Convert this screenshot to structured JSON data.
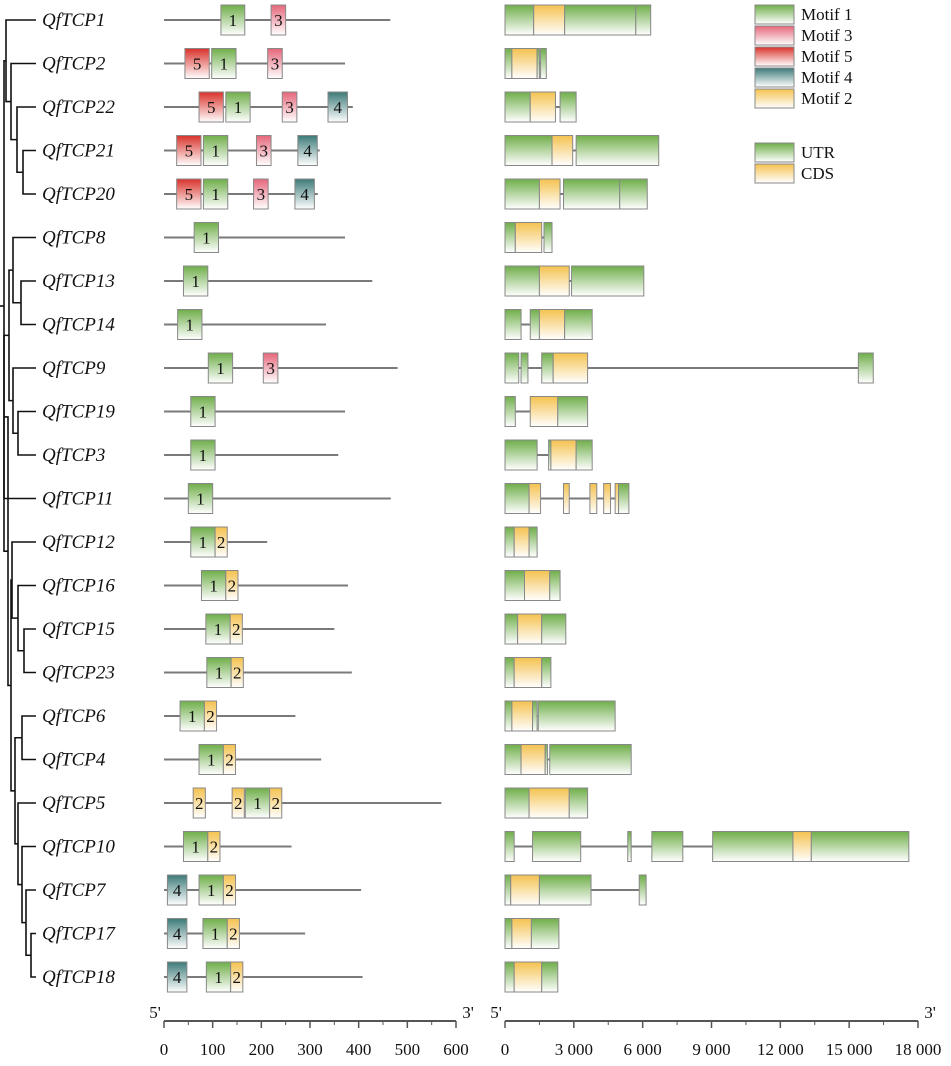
{
  "colors": {
    "motif1": [
      "#6fae4a",
      "#ffffff"
    ],
    "motif3": [
      "#e5667a",
      "#ffffff"
    ],
    "motif5": [
      "#d9322b",
      "#ffffff"
    ],
    "motif4": [
      "#3c7a78",
      "#ffffff"
    ],
    "motif2": [
      "#f4c24f",
      "#ffffff"
    ],
    "utr": [
      "#6fae4a",
      "#ffffff"
    ],
    "cds": [
      "#f4c24f",
      "#ffffff"
    ],
    "line": "#7a7a7a",
    "tree": "#111111"
  },
  "legend": [
    {
      "key": "motif1",
      "label": "Motif 1"
    },
    {
      "key": "motif3",
      "label": "Motif 3"
    },
    {
      "key": "motif5",
      "label": "Motif 5"
    },
    {
      "key": "motif4",
      "label": "Motif 4"
    },
    {
      "key": "motif2",
      "label": "Motif 2"
    },
    {
      "key": "utr",
      "label": "UTR"
    },
    {
      "key": "cds",
      "label": "CDS"
    }
  ],
  "motif_axis": {
    "start_label": "5'",
    "end_label": "3'",
    "ticks": [
      0,
      100,
      200,
      300,
      400,
      500,
      600
    ],
    "range": [
      0,
      600
    ]
  },
  "gene_axis": {
    "start_label": "5'",
    "end_label": "3'",
    "ticks": [
      "0",
      "3 000",
      "6 000",
      "9 000",
      "12 000",
      "15 000",
      "18 000"
    ],
    "range": [
      0,
      18000
    ]
  },
  "genes": [
    {
      "name": "QfTCP1",
      "length": 465,
      "motifs": [
        [
          117,
          166,
          1
        ],
        [
          220,
          250,
          3
        ]
      ],
      "structure": [
        [
          "u",
          0,
          1250
        ],
        [
          "c",
          1250,
          2600
        ],
        [
          "u",
          2600,
          5700
        ],
        [
          "u",
          5700,
          6350
        ]
      ]
    },
    {
      "name": "QfTCP2",
      "length": 372,
      "motifs": [
        [
          43,
          93,
          5
        ],
        [
          98,
          148,
          1
        ],
        [
          213,
          243,
          3
        ]
      ],
      "structure": [
        [
          "u",
          0,
          300
        ],
        [
          "c",
          300,
          1400
        ],
        [
          "u",
          1400,
          1500
        ],
        [
          "u",
          1550,
          1800
        ]
      ]
    },
    {
      "name": "QfTCP22",
      "length": 388,
      "motifs": [
        [
          72,
          122,
          5
        ],
        [
          127,
          177,
          1
        ],
        [
          243,
          273,
          3
        ],
        [
          337,
          377,
          4
        ]
      ],
      "structure": [
        [
          "u",
          0,
          1100
        ],
        [
          "c",
          1100,
          2200
        ],
        [
          "u",
          2400,
          3100
        ]
      ]
    },
    {
      "name": "QfTCP21",
      "length": 320,
      "motifs": [
        [
          26,
          76,
          5
        ],
        [
          81,
          131,
          1
        ],
        [
          190,
          220,
          3
        ],
        [
          275,
          315,
          4
        ]
      ],
      "structure": [
        [
          "u",
          0,
          2050
        ],
        [
          "c",
          2050,
          2950
        ],
        [
          "u",
          3100,
          6700
        ]
      ]
    },
    {
      "name": "QfTCP20",
      "length": 316,
      "motifs": [
        [
          26,
          76,
          5
        ],
        [
          81,
          131,
          1
        ],
        [
          184,
          214,
          3
        ],
        [
          269,
          309,
          4
        ]
      ],
      "structure": [
        [
          "u",
          0,
          1500
        ],
        [
          "c",
          1500,
          2400
        ],
        [
          "u",
          2550,
          5000
        ],
        [
          "u",
          5000,
          6200
        ]
      ]
    },
    {
      "name": "QfTCP8",
      "length": 372,
      "motifs": [
        [
          62,
          112,
          1
        ]
      ],
      "structure": [
        [
          "u",
          0,
          450
        ],
        [
          "c",
          450,
          1600
        ],
        [
          "u",
          1700,
          2050
        ]
      ]
    },
    {
      "name": "QfTCP13",
      "length": 428,
      "motifs": [
        [
          40,
          90,
          1
        ]
      ],
      "structure": [
        [
          "u",
          0,
          1500
        ],
        [
          "c",
          1500,
          2800
        ],
        [
          "u",
          2900,
          6050
        ]
      ]
    },
    {
      "name": "QfTCP14",
      "length": 333,
      "motifs": [
        [
          28,
          78,
          1
        ]
      ],
      "structure": [
        [
          "u",
          0,
          700
        ],
        [
          "u",
          1100,
          1500
        ],
        [
          "c",
          1500,
          2600
        ],
        [
          "u",
          2600,
          3800
        ]
      ]
    },
    {
      "name": "QfTCP9",
      "length": 480,
      "motifs": [
        [
          91,
          141,
          1
        ],
        [
          204,
          234,
          3
        ]
      ],
      "structure": [
        [
          "u",
          0,
          600
        ],
        [
          "u",
          700,
          1000
        ],
        [
          "u",
          1600,
          2100
        ],
        [
          "c",
          2100,
          3600
        ],
        [
          "u",
          15400,
          16050
        ]
      ]
    },
    {
      "name": "QfTCP19",
      "length": 372,
      "motifs": [
        [
          55,
          105,
          1
        ]
      ],
      "structure": [
        [
          "u",
          0,
          450
        ],
        [
          "c",
          1100,
          2300
        ],
        [
          "u",
          2300,
          3600
        ]
      ]
    },
    {
      "name": "QfTCP3",
      "length": 358,
      "motifs": [
        [
          55,
          105,
          1
        ]
      ],
      "structure": [
        [
          "u",
          0,
          1400
        ],
        [
          "u",
          1900,
          2000
        ],
        [
          "c",
          2000,
          3100
        ],
        [
          "u",
          3100,
          3800
        ]
      ]
    },
    {
      "name": "QfTCP11",
      "length": 466,
      "motifs": [
        [
          50,
          100,
          1
        ]
      ],
      "structure": [
        [
          "u",
          0,
          1050
        ],
        [
          "c",
          1050,
          1550
        ],
        [
          "c",
          2550,
          2800
        ],
        [
          "c",
          3700,
          4000
        ],
        [
          "c",
          4300,
          4600
        ],
        [
          "c",
          4800,
          4950
        ],
        [
          "u",
          4950,
          5400
        ]
      ]
    },
    {
      "name": "QfTCP12",
      "length": 212,
      "motifs": [
        [
          55,
          105,
          1
        ],
        [
          105,
          130,
          2
        ]
      ],
      "structure": [
        [
          "u",
          0,
          400
        ],
        [
          "c",
          400,
          1050
        ],
        [
          "u",
          1050,
          1400
        ]
      ]
    },
    {
      "name": "QfTCP16",
      "length": 378,
      "motifs": [
        [
          77,
          127,
          1
        ],
        [
          127,
          152,
          2
        ]
      ],
      "structure": [
        [
          "u",
          0,
          850
        ],
        [
          "c",
          850,
          1950
        ],
        [
          "u",
          1950,
          2400
        ]
      ]
    },
    {
      "name": "QfTCP15",
      "length": 350,
      "motifs": [
        [
          86,
          136,
          1
        ],
        [
          136,
          161,
          2
        ]
      ],
      "structure": [
        [
          "u",
          0,
          550
        ],
        [
          "c",
          550,
          1600
        ],
        [
          "u",
          1600,
          2650
        ]
      ]
    },
    {
      "name": "QfTCP23",
      "length": 386,
      "motifs": [
        [
          88,
          138,
          1
        ],
        [
          138,
          163,
          2
        ]
      ],
      "structure": [
        [
          "u",
          0,
          400
        ],
        [
          "c",
          400,
          1600
        ],
        [
          "u",
          1600,
          2000
        ]
      ]
    },
    {
      "name": "QfTCP6",
      "length": 270,
      "motifs": [
        [
          33,
          83,
          1
        ],
        [
          83,
          108,
          2
        ]
      ],
      "structure": [
        [
          "u",
          0,
          300
        ],
        [
          "c",
          300,
          1200
        ],
        [
          "u",
          1200,
          1400
        ],
        [
          "u",
          1450,
          4800
        ]
      ]
    },
    {
      "name": "QfTCP4",
      "length": 323,
      "motifs": [
        [
          72,
          122,
          1
        ],
        [
          122,
          147,
          2
        ]
      ],
      "structure": [
        [
          "u",
          0,
          700
        ],
        [
          "c",
          700,
          1750
        ],
        [
          "u",
          1750,
          1850
        ],
        [
          "u",
          1950,
          5500
        ]
      ]
    },
    {
      "name": "QfTCP5",
      "length": 570,
      "motifs": [
        [
          60,
          85,
          2
        ],
        [
          140,
          165,
          2
        ],
        [
          167,
          217,
          1
        ],
        [
          217,
          242,
          2
        ]
      ],
      "structure": [
        [
          "u",
          0,
          1050
        ],
        [
          "c",
          1050,
          2800
        ],
        [
          "u",
          2800,
          3600
        ]
      ]
    },
    {
      "name": "QfTCP10",
      "length": 262,
      "motifs": [
        [
          40,
          90,
          1
        ],
        [
          90,
          115,
          2
        ]
      ],
      "structure": [
        [
          "u",
          0,
          400
        ],
        [
          "u",
          1200,
          3300
        ],
        [
          "u",
          5350,
          5500
        ],
        [
          "u",
          6400,
          7750
        ],
        [
          "u",
          9050,
          12550
        ],
        [
          "c",
          12550,
          13350
        ],
        [
          "u",
          13350,
          17600
        ]
      ]
    },
    {
      "name": "QfTCP7",
      "length": 405,
      "motifs": [
        [
          7,
          47,
          4
        ],
        [
          72,
          122,
          1
        ],
        [
          122,
          147,
          2
        ]
      ],
      "structure": [
        [
          "u",
          0,
          250
        ],
        [
          "c",
          250,
          1500
        ],
        [
          "u",
          1500,
          3750
        ],
        [
          "u",
          5850,
          6150
        ]
      ]
    },
    {
      "name": "QfTCP17",
      "length": 290,
      "motifs": [
        [
          7,
          47,
          4
        ],
        [
          80,
          130,
          1
        ],
        [
          130,
          155,
          2
        ]
      ],
      "structure": [
        [
          "u",
          0,
          300
        ],
        [
          "c",
          300,
          1150
        ],
        [
          "u",
          1150,
          2350
        ]
      ]
    },
    {
      "name": "QfTCP18",
      "length": 408,
      "motifs": [
        [
          7,
          47,
          4
        ],
        [
          87,
          137,
          1
        ],
        [
          137,
          162,
          2
        ]
      ],
      "structure": [
        [
          "u",
          0,
          400
        ],
        [
          "c",
          400,
          1600
        ],
        [
          "u",
          1600,
          2300
        ]
      ]
    }
  ]
}
